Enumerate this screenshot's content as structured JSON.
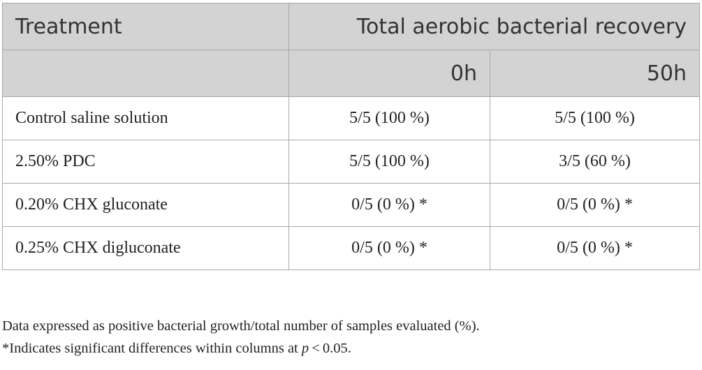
{
  "table": {
    "header": {
      "treatment": "Treatment",
      "recovery": "Total aerobic bacterial recovery",
      "time_0": "0h",
      "time_50": "50h"
    },
    "rows": [
      {
        "treatment": "Control saline solution",
        "h0": "5/5 (100 %)",
        "h50": "5/5 (100 %)"
      },
      {
        "treatment": "2.50% PDC",
        "h0": "5/5 (100 %)",
        "h50": "3/5 (60 %)"
      },
      {
        "treatment": "0.20% CHX gluconate",
        "h0": "0/5 (0 %) *",
        "h50": "0/5 (0 %) *"
      },
      {
        "treatment": "0.25% CHX digluconate",
        "h0": "0/5 (0 %) *",
        "h50": "0/5 (0 %) *"
      }
    ]
  },
  "footnotes": {
    "line1": "Data expressed as positive bacterial growth/total number of samples evaluated (%).",
    "line2_prefix": "*Indicates significant differences within columns at ",
    "line2_var": "p",
    "line2_suffix": " < 0.05."
  }
}
